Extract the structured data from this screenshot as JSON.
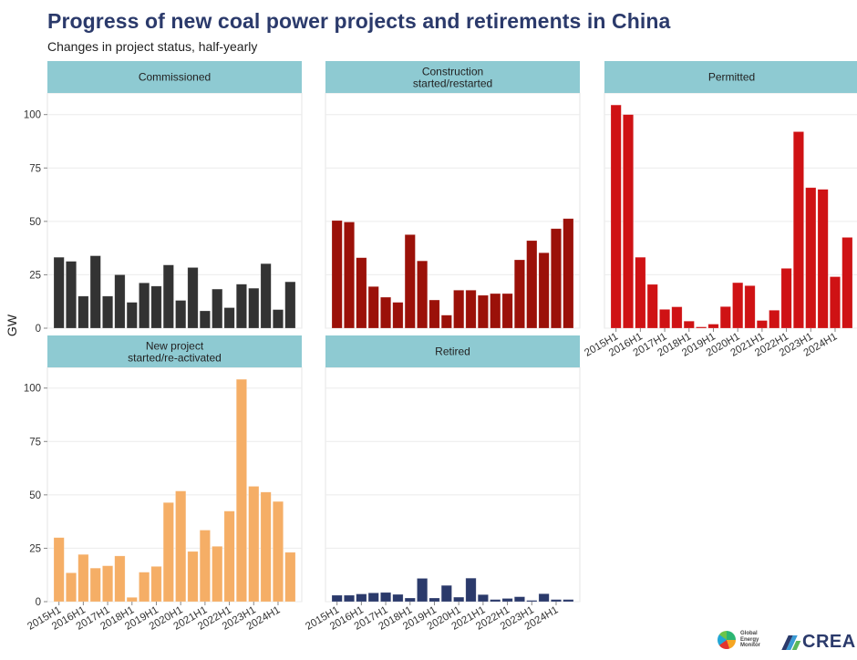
{
  "header": {
    "title": "Progress of new coal power projects and retirements in China",
    "subtitle": "Changes in project status, half-yearly"
  },
  "logos": {
    "gem_lines": [
      "Global",
      "Energy",
      "Monitor"
    ],
    "crea": "CREA"
  },
  "chart_data": {
    "type": "bar",
    "layout": "facet-grid",
    "ylabel": "GW",
    "xlabel": "",
    "ylim": [
      0,
      110
    ],
    "yticks": [
      0,
      25,
      50,
      75,
      100
    ],
    "grid": true,
    "strip_color": "#8ecad2",
    "categories": [
      "2015H1",
      "2015H2",
      "2016H1",
      "2016H2",
      "2017H1",
      "2017H2",
      "2018H1",
      "2018H2",
      "2019H1",
      "2019H2",
      "2020H1",
      "2020H2",
      "2021H1",
      "2021H2",
      "2022H1",
      "2022H2",
      "2023H1",
      "2023H2",
      "2024H1",
      "2024H2"
    ],
    "xtick_labels": [
      "2015H1",
      "2016H1",
      "2017H1",
      "2018H1",
      "2019H1",
      "2020H1",
      "2021H1",
      "2022H1",
      "2023H1",
      "2024H1"
    ],
    "panels": [
      {
        "name": "Commissioned",
        "strip_lines": [
          "Commissioned"
        ],
        "color": "#333333",
        "values": [
          33.2,
          31.3,
          15.0,
          33.9,
          15.0,
          25.0,
          12.1,
          21.2,
          19.7,
          29.6,
          13.0,
          28.4,
          8.1,
          18.3,
          9.6,
          20.6,
          18.7,
          30.2,
          8.7,
          21.7
        ]
      },
      {
        "name": "Construction started/restarted",
        "strip_lines": [
          "Construction",
          "started/restarted"
        ],
        "color": "#9b1109",
        "values": [
          50.4,
          49.7,
          33.0,
          19.5,
          14.5,
          12.1,
          43.8,
          31.5,
          13.2,
          6.1,
          17.8,
          17.8,
          15.4,
          16.2,
          16.2,
          32.0,
          41.0,
          35.3,
          46.6,
          51.3
        ]
      },
      {
        "name": "Permitted",
        "strip_lines": [
          "Permitted"
        ],
        "color": "#cf1214",
        "values": [
          104.5,
          100.0,
          33.2,
          20.5,
          8.8,
          10.0,
          3.3,
          0.6,
          1.9,
          10.1,
          21.3,
          19.9,
          3.6,
          8.4,
          28.0,
          92.0,
          65.8,
          65.0,
          24.1,
          42.5
        ]
      },
      {
        "name": "New project started/re-activated",
        "strip_lines": [
          "New project",
          "started/re-activated"
        ],
        "color": "#f5ae66",
        "values": [
          30.0,
          13.5,
          22.1,
          15.7,
          16.8,
          21.4,
          2.0,
          13.8,
          16.5,
          46.4,
          51.8,
          23.5,
          33.5,
          25.9,
          42.4,
          104.1,
          54.0,
          51.3,
          46.9,
          23.1
        ]
      },
      {
        "name": "Retired",
        "strip_lines": [
          "Retired"
        ],
        "color": "#2b3a6b",
        "values": [
          3.0,
          3.0,
          3.6,
          4.1,
          4.3,
          3.4,
          1.7,
          10.9,
          1.7,
          7.6,
          2.1,
          11.0,
          3.3,
          1.0,
          1.5,
          2.3,
          0.6,
          3.7,
          1.0,
          1.0
        ]
      }
    ]
  }
}
